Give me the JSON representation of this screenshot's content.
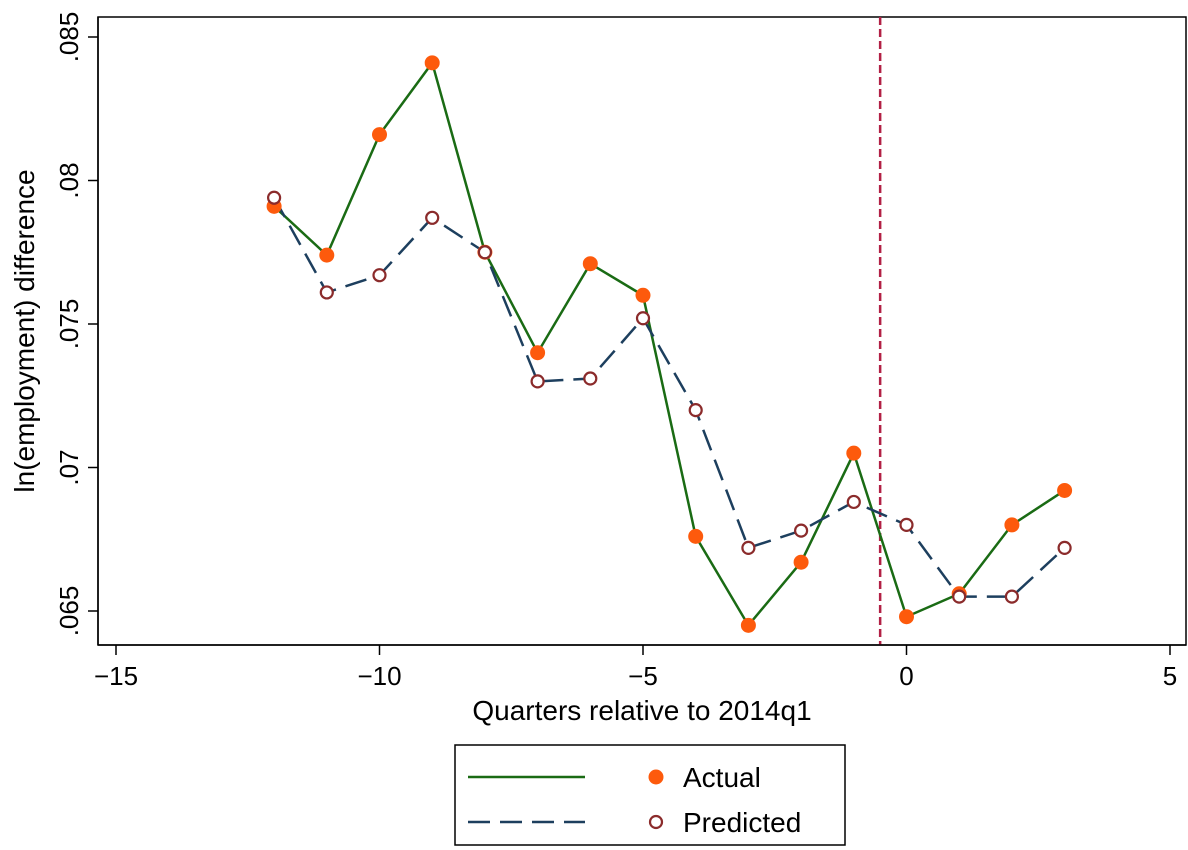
{
  "chart_data": {
    "type": "line",
    "title": "",
    "xlabel": "Quarters relative to 2014q1",
    "ylabel": "ln(employment) difference",
    "xlim": [
      -15,
      5
    ],
    "ylim": [
      0.065,
      0.085
    ],
    "x_ticks": [
      -15,
      -10,
      -5,
      0,
      5
    ],
    "x_tick_labels": [
      "−15",
      "−10",
      "−5",
      "0",
      "5"
    ],
    "y_ticks": [
      0.065,
      0.07,
      0.075,
      0.08,
      0.085
    ],
    "y_tick_labels": [
      ".065",
      ".07",
      ".075",
      ".08",
      ".085"
    ],
    "grid": false,
    "legend_position": "bottom",
    "reference_line": {
      "x": -0.5,
      "color": "#b22045",
      "style": "dashed"
    },
    "x": [
      -12,
      -11,
      -10,
      -9,
      -8,
      -7,
      -6,
      -5,
      -4,
      -3,
      -2,
      -1,
      0,
      1,
      2,
      3
    ],
    "series": [
      {
        "name": "Actual",
        "line_color": "#1a6b14",
        "marker_color": "#fd5a0c",
        "marker": "filled-circle",
        "line_style": "solid",
        "values": [
          0.0791,
          0.0774,
          0.0816,
          0.0841,
          0.0775,
          0.074,
          0.0771,
          0.076,
          0.0676,
          0.0645,
          0.0667,
          0.0705,
          0.0648,
          0.0656,
          0.068,
          0.0692
        ]
      },
      {
        "name": "Predicted",
        "line_color": "#1d3f5e",
        "marker_color": "#8b2b2b",
        "marker": "hollow-circle",
        "line_style": "dashed",
        "values": [
          0.0794,
          0.0761,
          0.0767,
          0.0787,
          0.0775,
          0.073,
          0.0731,
          0.0752,
          0.072,
          0.0672,
          0.0678,
          0.0688,
          0.068,
          0.0655,
          0.0655,
          0.0672
        ]
      }
    ]
  }
}
